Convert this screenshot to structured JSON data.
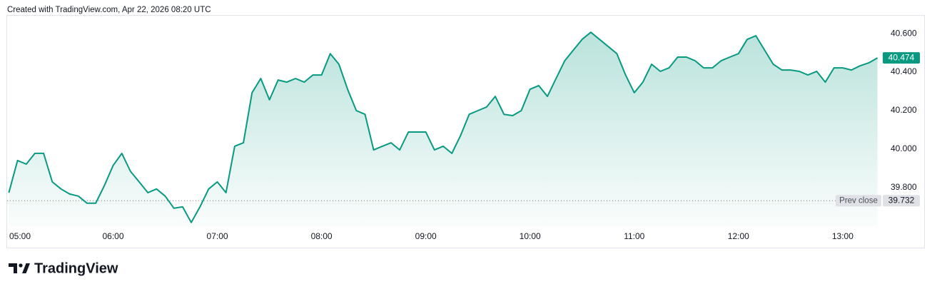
{
  "header": {
    "credit": "Created with TradingView.com, Apr 22, 2026 08:20 UTC"
  },
  "footer": {
    "brand": "TradingView"
  },
  "chart_data": {
    "type": "area",
    "x": [
      "05:00",
      "05:05",
      "05:10",
      "05:15",
      "05:20",
      "05:25",
      "05:30",
      "05:35",
      "05:40",
      "05:45",
      "05:50",
      "05:55",
      "06:00",
      "06:05",
      "06:10",
      "06:15",
      "06:20",
      "06:25",
      "06:30",
      "06:35",
      "06:40",
      "06:45",
      "06:50",
      "06:55",
      "07:00",
      "07:05",
      "07:10",
      "07:15",
      "07:20",
      "07:25",
      "07:30",
      "07:35",
      "07:40",
      "07:45",
      "07:50",
      "07:55",
      "08:00",
      "08:05",
      "08:10",
      "08:15",
      "08:20",
      "08:25",
      "08:30",
      "08:35",
      "08:40",
      "08:45",
      "08:50",
      "08:55",
      "09:00",
      "09:05",
      "09:10",
      "09:15",
      "09:20",
      "09:25",
      "09:30",
      "09:35",
      "09:40",
      "09:45",
      "09:50",
      "09:55",
      "10:00",
      "10:05",
      "10:10",
      "10:15",
      "10:20",
      "10:25",
      "10:30",
      "10:35",
      "10:40",
      "10:45",
      "10:50",
      "10:55",
      "11:00",
      "11:05",
      "11:10",
      "11:15",
      "11:20",
      "11:25",
      "11:30",
      "11:35",
      "11:40",
      "11:45",
      "11:50",
      "11:55",
      "12:00",
      "12:05",
      "12:10",
      "12:15",
      "12:20",
      "12:25",
      "12:30",
      "12:35",
      "12:40",
      "12:45",
      "12:50",
      "12:55",
      "13:00",
      "13:05",
      "13:10",
      "13:15",
      "13:20"
    ],
    "series": [
      {
        "color": "#089981",
        "values": [
          39.774,
          39.941,
          39.922,
          39.978,
          39.978,
          39.83,
          39.793,
          39.767,
          39.756,
          39.719,
          39.719,
          39.811,
          39.915,
          39.978,
          39.885,
          39.83,
          39.774,
          39.793,
          39.756,
          39.693,
          39.7,
          39.619,
          39.7,
          39.793,
          39.83,
          39.774,
          40.015,
          40.033,
          40.293,
          40.367,
          40.256,
          40.359,
          40.348,
          40.367,
          40.348,
          40.385,
          40.385,
          40.496,
          40.441,
          40.311,
          40.2,
          40.181,
          39.996,
          40.015,
          40.033,
          39.996,
          40.089,
          40.089,
          40.089,
          39.996,
          40.015,
          39.978,
          40.07,
          40.181,
          40.2,
          40.219,
          40.274,
          40.181,
          40.174,
          40.2,
          40.311,
          40.33,
          40.274,
          40.367,
          40.459,
          40.515,
          40.57,
          40.607,
          40.57,
          40.533,
          40.496,
          40.385,
          40.293,
          40.348,
          40.441,
          40.404,
          40.422,
          40.478,
          40.478,
          40.459,
          40.422,
          40.422,
          40.459,
          40.478,
          40.496,
          40.57,
          40.589,
          40.515,
          40.441,
          40.411,
          40.411,
          40.404,
          40.385,
          40.404,
          40.348,
          40.422,
          40.422,
          40.411,
          40.433,
          40.448,
          40.474
        ]
      }
    ],
    "xlim": [
      "04:59",
      "13:21"
    ],
    "xticks": [
      "05:00",
      "06:00",
      "07:00",
      "08:00",
      "09:00",
      "10:00",
      "11:00",
      "12:00",
      "13:00"
    ],
    "ylim": [
      39.596,
      40.693
    ],
    "yticks": [
      {
        "value": 39.8,
        "label": "39.800"
      },
      {
        "value": 40.0,
        "label": "40.000"
      },
      {
        "value": 40.2,
        "label": "40.200"
      },
      {
        "value": 40.4,
        "label": "40.400"
      },
      {
        "value": 40.6,
        "label": "40.600"
      }
    ],
    "last_price": {
      "value": 40.474,
      "label": "40.474"
    },
    "prev_close_label": "Prev close",
    "prev_close": {
      "value": 39.732,
      "label": "39.732"
    }
  }
}
